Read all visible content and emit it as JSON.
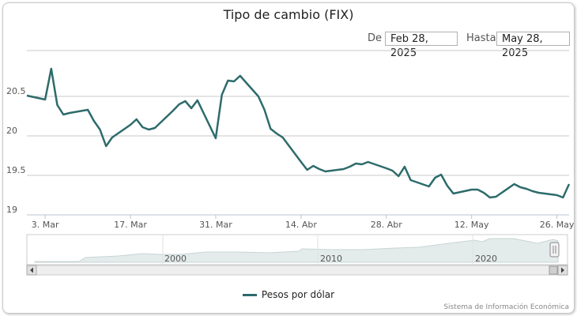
{
  "header": {
    "title": "Tipo de cambio (FIX)",
    "from_label": "De",
    "from_value": "Feb 28, 2025",
    "to_label": "Hasta",
    "to_value": "May 28, 2025"
  },
  "legend": {
    "label": "Pesos por dólar"
  },
  "credits": "Sistema de Información Económica",
  "colors": {
    "series": "#2e6b6b",
    "grid": "#c8c8c8",
    "navigator_fill": "#e4ebeb"
  },
  "navigator": {
    "year_labels": [
      "2000",
      "2010",
      "2020"
    ]
  },
  "chart_data": {
    "type": "line",
    "y_ticks": [
      "19",
      "19.5",
      "20",
      "20.5"
    ],
    "ylim": [
      19,
      21.1
    ],
    "x_tick_labels": [
      "3. Mar",
      "17. Mar",
      "31. Mar",
      "14. Abr",
      "28. Abr",
      "12. May",
      "26. May"
    ],
    "series": [
      {
        "name": "Pesos por dólar",
        "x": [
          "2025-02-28",
          "2025-03-03",
          "2025-03-04",
          "2025-03-05",
          "2025-03-06",
          "2025-03-07",
          "2025-03-10",
          "2025-03-11",
          "2025-03-12",
          "2025-03-13",
          "2025-03-14",
          "2025-03-17",
          "2025-03-18",
          "2025-03-19",
          "2025-03-20",
          "2025-03-21",
          "2025-03-24",
          "2025-03-25",
          "2025-03-26",
          "2025-03-27",
          "2025-03-28",
          "2025-03-31",
          "2025-04-01",
          "2025-04-02",
          "2025-04-03",
          "2025-04-04",
          "2025-04-07",
          "2025-04-08",
          "2025-04-09",
          "2025-04-10",
          "2025-04-11",
          "2025-04-14",
          "2025-04-15",
          "2025-04-16",
          "2025-04-17",
          "2025-04-18",
          "2025-04-21",
          "2025-04-22",
          "2025-04-23",
          "2025-04-24",
          "2025-04-25",
          "2025-04-28",
          "2025-04-29",
          "2025-04-30",
          "2025-05-01",
          "2025-05-02",
          "2025-05-05",
          "2025-05-06",
          "2025-05-07",
          "2025-05-08",
          "2025-05-09",
          "2025-05-12",
          "2025-05-13",
          "2025-05-14",
          "2025-05-15",
          "2025-05-16",
          "2025-05-19",
          "2025-05-20",
          "2025-05-21",
          "2025-05-22",
          "2025-05-23",
          "2025-05-26",
          "2025-05-27",
          "2025-05-28"
        ],
        "values": [
          20.51,
          20.46,
          20.85,
          20.39,
          20.27,
          20.29,
          20.33,
          20.19,
          20.08,
          19.87,
          19.98,
          20.14,
          20.21,
          20.11,
          20.08,
          20.1,
          20.32,
          20.4,
          20.44,
          20.35,
          20.45,
          19.97,
          20.52,
          20.7,
          20.69,
          20.76,
          20.5,
          20.33,
          20.09,
          20.03,
          19.98,
          19.67,
          19.57,
          19.62,
          19.58,
          19.55,
          19.58,
          19.61,
          19.65,
          19.64,
          19.67,
          19.59,
          19.56,
          19.49,
          19.61,
          19.44,
          19.36,
          19.47,
          19.51,
          19.37,
          19.27,
          19.32,
          19.32,
          19.28,
          19.22,
          19.23,
          19.39,
          19.35,
          19.33,
          19.3,
          19.28,
          19.25,
          19.22,
          19.39
        ]
      }
    ]
  }
}
